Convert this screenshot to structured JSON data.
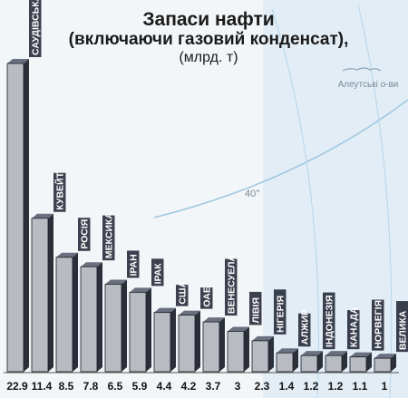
{
  "title_line1": "Запаси нафти",
  "title_line2": "(включаючи газовий конденсат),",
  "title_line3": "(млрд. т)",
  "map_labels": {
    "islands": "Алеутські о-ви",
    "latitude": "40°"
  },
  "colors": {
    "bar_front": "#b8bcc2",
    "bar_side": "#2a2f3a",
    "bar_top": "#6a7080",
    "label_band": "#1c2030",
    "label_text": "#ffffff",
    "map": "#e2edf5",
    "map_line": "#9ec6e0"
  },
  "chart_data": {
    "type": "bar",
    "title": "Запаси нафти (включаючи газовий конденсат), (млрд. т)",
    "categories": [
      "САУДІВСЬКА АРАВІЯ",
      "КУВЕЙТ",
      "РОСІЯ",
      "МЕКСИКА",
      "ІРАН",
      "ІРАК",
      "США",
      "ОАЕ",
      "ВЕНЕСУЕЛА",
      "ЛІВІЯ",
      "НІГЕРІЯ",
      "АЛЖИР",
      "ІНДОНЕЗІЯ",
      "КАНАДА",
      "НОРВЕГІЯ",
      "ВЕЛИКА БРИТАНІЯ"
    ],
    "label_lines": [
      [
        "САУДІВСЬКА АРАВІЯ"
      ],
      [
        "КУВЕЙТ"
      ],
      [
        "РОСІЯ"
      ],
      [
        "МЕКСИКА"
      ],
      [
        "ІРАН"
      ],
      [
        "ІРАК"
      ],
      [
        "США"
      ],
      [
        "ОАЕ"
      ],
      [
        "ВЕНЕСУЕЛА"
      ],
      [
        "ЛІВІЯ"
      ],
      [
        "НІГЕРІЯ"
      ],
      [
        "АЛЖИР"
      ],
      [
        "ІНДОНЕЗІЯ"
      ],
      [
        "КАНАДА"
      ],
      [
        "НОРВЕГІЯ"
      ],
      [
        "ВЕЛИКА",
        "БРИТАНІЯ"
      ]
    ],
    "values": [
      22.9,
      11.4,
      8.5,
      7.8,
      6.5,
      5.9,
      4.4,
      4.2,
      3.7,
      3,
      2.3,
      1.4,
      1.2,
      1.2,
      1.1,
      1
    ],
    "value_labels": [
      "22.9",
      "11.4",
      "8.5",
      "7.8",
      "6.5",
      "5.9",
      "4.4",
      "4.2",
      "3.7",
      "3",
      "2.3",
      "1.4",
      "1.2",
      "1.2",
      "1.1",
      "1"
    ],
    "ylim": [
      0,
      22.9
    ],
    "grid": false,
    "legend": "none"
  }
}
